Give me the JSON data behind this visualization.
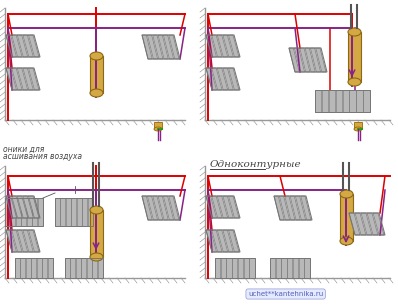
{
  "title": "Одноконтурные",
  "annotation_left1": "оники для",
  "annotation_left2": "асшивания воздуха",
  "watermark": "uchet**kantehnika.ru",
  "bg_color": "#ffffff",
  "red": "#dd0000",
  "purple": "#882288",
  "boiler_fill": "#d4a843",
  "boiler_stroke": "#8b6914",
  "boiler_fill2": "#c8c8c8",
  "radiator_color": "#b8b8b8",
  "radiator_stroke": "#777777",
  "green": "#00aa00",
  "gray_wall": "#cccccc",
  "floor_color": "#888888"
}
